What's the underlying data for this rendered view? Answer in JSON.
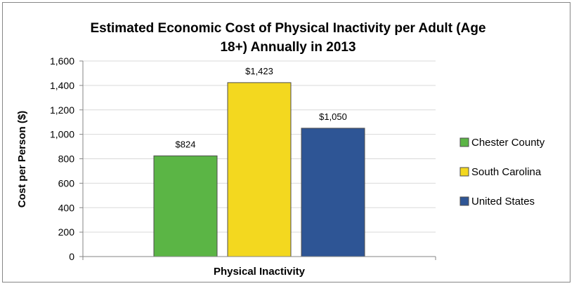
{
  "chart_data": {
    "type": "bar",
    "title": "Estimated Economic Cost of Physical Inactivity per Adult (Age 18+) Annually in 2013",
    "title_lines": [
      "Estimated Economic Cost of Physical Inactivity per Adult (Age",
      "18+) Annually in 2013"
    ],
    "xlabel": "Physical Inactivity",
    "ylabel": "Cost per Person ($)",
    "categories": [
      "Physical Inactivity"
    ],
    "series": [
      {
        "name": "Chester County",
        "values": [
          824
        ],
        "label": "$824",
        "color": "#5bb545"
      },
      {
        "name": "South Carolina",
        "values": [
          1423
        ],
        "label": "$1,423",
        "color": "#f3d81f"
      },
      {
        "name": "United States",
        "values": [
          1050
        ],
        "label": "$1,050",
        "color": "#2e5595"
      }
    ],
    "ylim": [
      0,
      1600
    ],
    "yticks": [
      0,
      200,
      400,
      600,
      800,
      1000,
      1200,
      1400,
      1600
    ],
    "ytick_labels": [
      "0",
      "200",
      "400",
      "600",
      "800",
      "1,000",
      "1,200",
      "1,400",
      "1,600"
    ],
    "grid": true,
    "legend_position": "right"
  }
}
